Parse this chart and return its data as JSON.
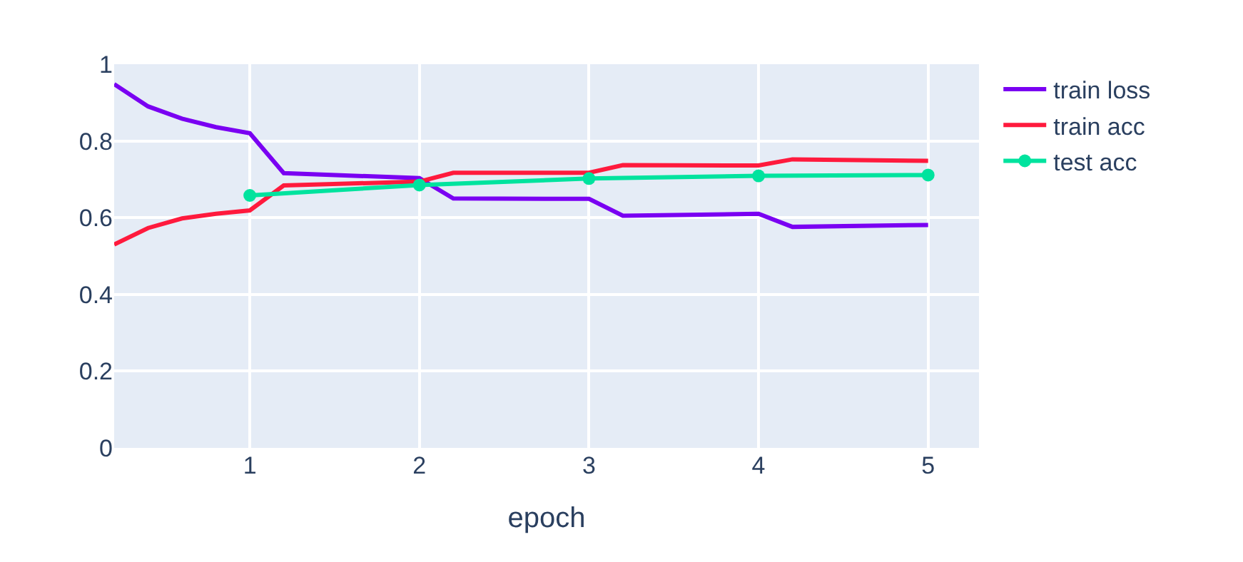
{
  "chart_data": {
    "type": "line",
    "xlabel": "epoch",
    "xlim": [
      0.2,
      5.3
    ],
    "xticks": [
      1,
      2,
      3,
      4,
      5
    ],
    "ylim": [
      0,
      1
    ],
    "yticks": [
      0,
      0.2,
      0.4,
      0.6,
      0.8,
      1
    ],
    "grid": true,
    "legend": "top right",
    "marker": "none",
    "series": [
      {
        "name": "train loss",
        "color": "#7a00f2",
        "x": [
          0.2,
          0.4,
          0.6,
          0.8,
          1.0,
          1.2,
          2.0,
          2.2,
          3.0,
          3.2,
          4.0,
          4.2,
          5.0
        ],
        "values": [
          0.948,
          0.89,
          0.858,
          0.836,
          0.82,
          0.716,
          0.703,
          0.65,
          0.649,
          0.605,
          0.61,
          0.576,
          0.581
        ]
      },
      {
        "name": "train acc",
        "color": "#ff1a3d",
        "x": [
          0.2,
          0.4,
          0.6,
          0.8,
          1.0,
          1.2,
          2.0,
          2.2,
          3.0,
          3.2,
          4.0,
          4.2,
          5.0
        ],
        "values": [
          0.53,
          0.573,
          0.598,
          0.61,
          0.619,
          0.684,
          0.694,
          0.717,
          0.717,
          0.737,
          0.736,
          0.752,
          0.748
        ]
      },
      {
        "name": "test acc",
        "color": "#00e39e",
        "marker": "circle",
        "x": [
          1,
          2,
          3,
          4,
          5
        ],
        "values": [
          0.658,
          0.685,
          0.702,
          0.709,
          0.711
        ]
      }
    ]
  }
}
